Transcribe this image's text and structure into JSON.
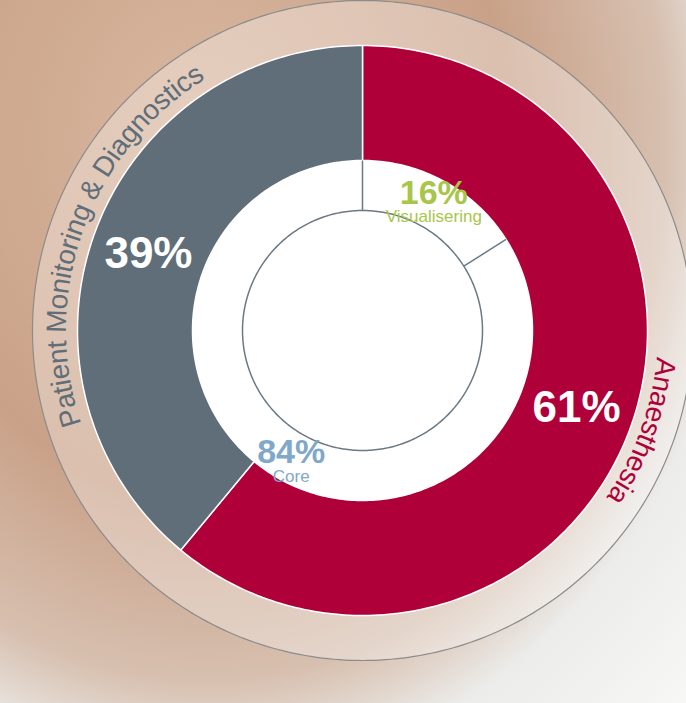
{
  "chart_data": [
    {
      "type": "donut",
      "categories": [
        "Anaesthesia",
        "Patient Monitoring & Diagnostics"
      ],
      "values": [
        61,
        39
      ],
      "value_labels": [
        "61%",
        "39%"
      ],
      "colors": [
        "#b0003a",
        "#5f6e78"
      ],
      "data_labels": true
    },
    {
      "type": "donut",
      "categories": [
        "Visualisering",
        "Core"
      ],
      "values": [
        16,
        84
      ],
      "value_labels": [
        "16%",
        "84%"
      ],
      "colors": [
        "#a8c64a",
        "#7fa8c9"
      ],
      "data_labels": true
    }
  ]
}
